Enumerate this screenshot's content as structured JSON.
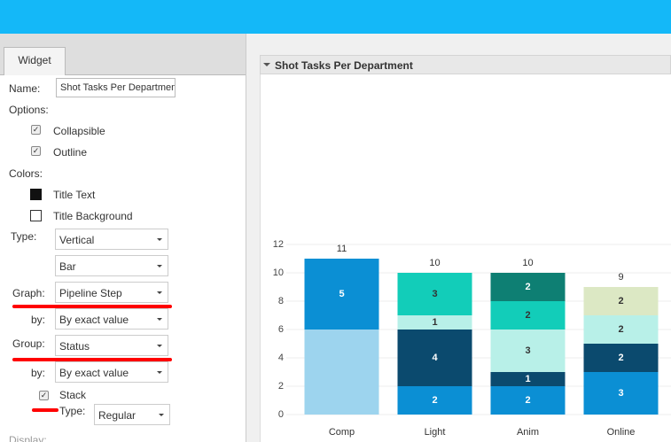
{
  "sidebar": {
    "tab": "Widget",
    "name_label": "Name:",
    "name_value": "Shot Tasks Per Department",
    "options_label": "Options:",
    "collapsible": "Collapsible",
    "outline": "Outline",
    "colors_label": "Colors:",
    "title_text": "Title Text",
    "title_background": "Title Background",
    "type_label": "Type:",
    "type_value": "Vertical",
    "type_value2": "Bar",
    "graph_label": "Graph:",
    "graph_value": "Pipeline Step",
    "graph_by_label": "by:",
    "graph_by_value": "By exact value",
    "group_label": "Group:",
    "group_value": "Status",
    "group_by_label": "by:",
    "group_by_value": "By exact value",
    "stack": "Stack",
    "stack_type_label": "Type:",
    "stack_type_value": "Regular",
    "display_label": "Display:"
  },
  "widget_title": "Shot Tasks Per Department",
  "chart_data": {
    "type": "stacked-bar",
    "categories": [
      "Comp",
      "Light",
      "Anim",
      "Online"
    ],
    "totals": [
      11,
      10,
      10,
      9
    ],
    "series": [
      {
        "color": "#9dd4ee",
        "label_color": "#333333",
        "values": [
          6,
          null,
          null,
          null
        ]
      },
      {
        "color": "#0b8fd4",
        "label_color": "#ffffff",
        "values": [
          5,
          2,
          2,
          3
        ]
      },
      {
        "color": "#0b4a6e",
        "label_color": "#ffffff",
        "values": [
          null,
          4,
          1,
          2
        ]
      },
      {
        "color": "#b8f0e8",
        "label_color": "#333333",
        "values": [
          null,
          1,
          3,
          2
        ]
      },
      {
        "color": "#12cdb9",
        "label_color": "#333333",
        "values": [
          null,
          3,
          2,
          null
        ]
      },
      {
        "color": "#0e7f73",
        "label_color": "#ffffff",
        "values": [
          null,
          null,
          2,
          null
        ]
      },
      {
        "color": "#dce8c4",
        "label_color": "#333333",
        "values": [
          null,
          null,
          null,
          2
        ]
      }
    ],
    "ylim": [
      0,
      12
    ],
    "yticks": [
      0,
      2,
      4,
      6,
      8,
      10,
      12
    ],
    "grid": true
  }
}
